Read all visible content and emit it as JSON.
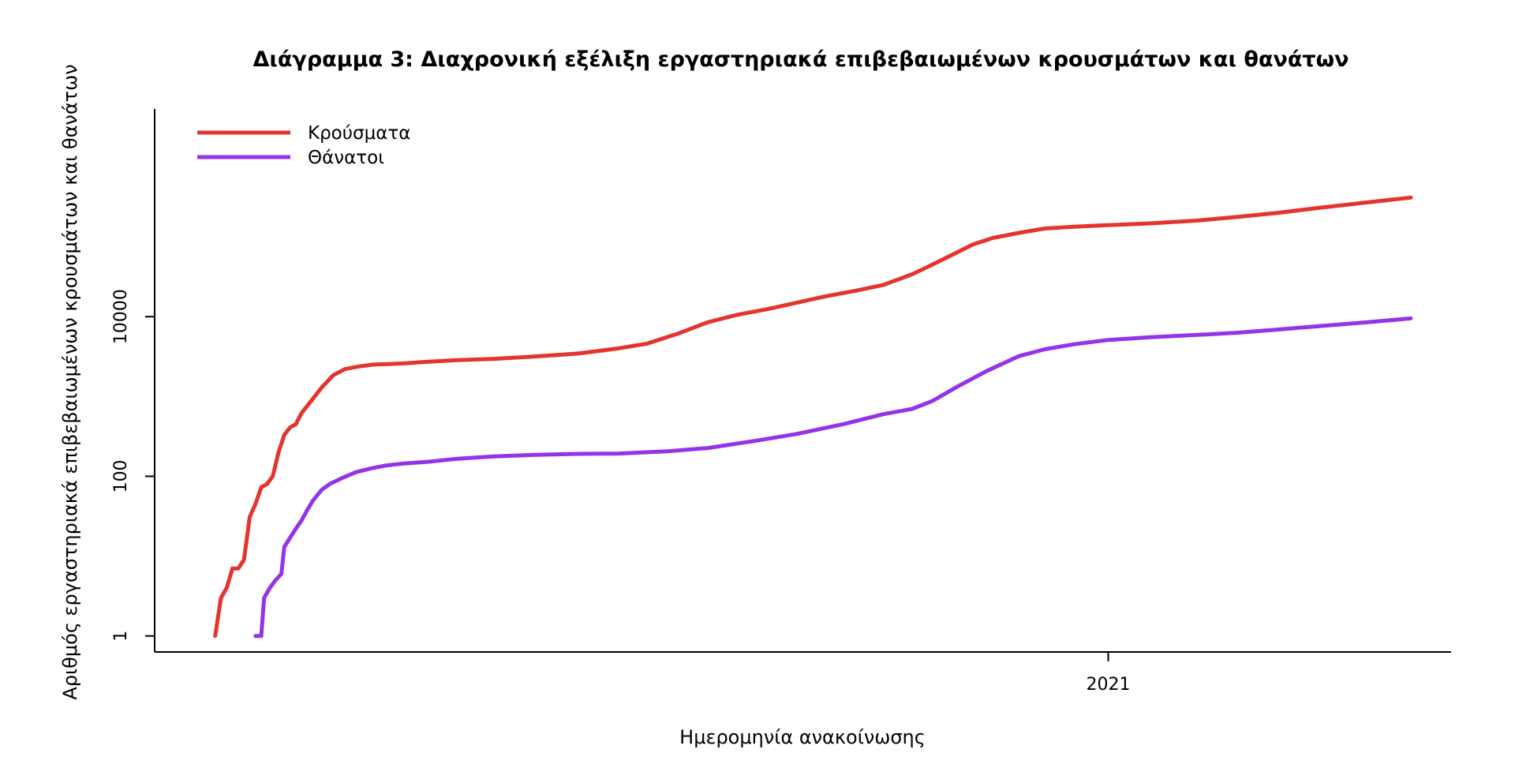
{
  "chart_data": {
    "type": "line",
    "title": "Διάγραμμα 3: Διαχρονική εξέλιξη εργαστηριακά επιβεβαιωμένων κρουσμάτων και θανάτων",
    "xlabel": "Ημερομηνία ανακοίνωσης",
    "ylabel": "Αριθμός εργαστηριακά επιβεβαιωμένων κρουσμάτων και θανάτων",
    "x_type": "date",
    "xlim": [
      "2020-02-05",
      "2021-04-30"
    ],
    "yscale": "log",
    "ylim": [
      0.63,
      4000000
    ],
    "y_ticks": [
      1,
      100,
      10000
    ],
    "y_tick_labels": [
      "1",
      "100",
      "10000"
    ],
    "x_ticks": [
      "2021-01-01"
    ],
    "x_tick_labels": [
      "2021"
    ],
    "grid": false,
    "legend_position": "top-left",
    "series": [
      {
        "name": "Κρούσματα",
        "color": "#e3342f",
        "points": [
          [
            "2020-02-26",
            1
          ],
          [
            "2020-02-28",
            3
          ],
          [
            "2020-03-01",
            4
          ],
          [
            "2020-03-03",
            7
          ],
          [
            "2020-03-05",
            7
          ],
          [
            "2020-03-07",
            9
          ],
          [
            "2020-03-09",
            31
          ],
          [
            "2020-03-11",
            45
          ],
          [
            "2020-03-13",
            73
          ],
          [
            "2020-03-15",
            80
          ],
          [
            "2020-03-17",
            100
          ],
          [
            "2020-03-19",
            200
          ],
          [
            "2020-03-21",
            330
          ],
          [
            "2020-03-23",
            410
          ],
          [
            "2020-03-25",
            450
          ],
          [
            "2020-03-27",
            620
          ],
          [
            "2020-03-30",
            850
          ],
          [
            "2020-04-03",
            1300
          ],
          [
            "2020-04-07",
            1850
          ],
          [
            "2020-04-11",
            2200
          ],
          [
            "2020-04-16",
            2380
          ],
          [
            "2020-04-21",
            2510
          ],
          [
            "2020-04-26",
            2550
          ],
          [
            "2020-05-01",
            2590
          ],
          [
            "2020-05-10",
            2720
          ],
          [
            "2020-05-20",
            2850
          ],
          [
            "2020-06-01",
            2950
          ],
          [
            "2020-06-15",
            3150
          ],
          [
            "2020-07-01",
            3450
          ],
          [
            "2020-07-15",
            4000
          ],
          [
            "2020-07-25",
            4600
          ],
          [
            "2020-08-05",
            6200
          ],
          [
            "2020-08-15",
            8500
          ],
          [
            "2020-08-25",
            10500
          ],
          [
            "2020-09-05",
            12500
          ],
          [
            "2020-09-15",
            15000
          ],
          [
            "2020-09-25",
            18000
          ],
          [
            "2020-10-05",
            21000
          ],
          [
            "2020-10-15",
            25000
          ],
          [
            "2020-10-25",
            34000
          ],
          [
            "2020-11-01",
            45000
          ],
          [
            "2020-11-08",
            60000
          ],
          [
            "2020-11-15",
            80000
          ],
          [
            "2020-11-22",
            97000
          ],
          [
            "2020-12-01",
            112000
          ],
          [
            "2020-12-10",
            127000
          ],
          [
            "2020-12-20",
            134000
          ],
          [
            "2021-01-01",
            140000
          ],
          [
            "2021-01-15",
            147000
          ],
          [
            "2021-02-01",
            160000
          ],
          [
            "2021-02-15",
            178000
          ],
          [
            "2021-03-01",
            200000
          ],
          [
            "2021-03-15",
            230000
          ],
          [
            "2021-04-01",
            270000
          ],
          [
            "2021-04-16",
            310000
          ]
        ]
      },
      {
        "name": "Θάνατοι",
        "color": "#9333ea",
        "points": [
          [
            "2020-03-11",
            1
          ],
          [
            "2020-03-13",
            1
          ],
          [
            "2020-03-14",
            3
          ],
          [
            "2020-03-16",
            4
          ],
          [
            "2020-03-18",
            5
          ],
          [
            "2020-03-20",
            6
          ],
          [
            "2020-03-21",
            13
          ],
          [
            "2020-03-23",
            17
          ],
          [
            "2020-03-25",
            22
          ],
          [
            "2020-03-27",
            28
          ],
          [
            "2020-03-29",
            38
          ],
          [
            "2020-03-31",
            50
          ],
          [
            "2020-04-03",
            68
          ],
          [
            "2020-04-06",
            81
          ],
          [
            "2020-04-10",
            95
          ],
          [
            "2020-04-15",
            113
          ],
          [
            "2020-04-20",
            125
          ],
          [
            "2020-04-25",
            136
          ],
          [
            "2020-05-01",
            144
          ],
          [
            "2020-05-10",
            152
          ],
          [
            "2020-05-20",
            166
          ],
          [
            "2020-06-01",
            177
          ],
          [
            "2020-06-15",
            185
          ],
          [
            "2020-07-01",
            191
          ],
          [
            "2020-07-15",
            193
          ],
          [
            "2020-08-01",
            206
          ],
          [
            "2020-08-15",
            226
          ],
          [
            "2020-09-01",
            280
          ],
          [
            "2020-09-15",
            340
          ],
          [
            "2020-10-01",
            450
          ],
          [
            "2020-10-15",
            600
          ],
          [
            "2020-10-25",
            700
          ],
          [
            "2020-11-01",
            880
          ],
          [
            "2020-11-10",
            1350
          ],
          [
            "2020-11-20",
            2100
          ],
          [
            "2020-12-01",
            3200
          ],
          [
            "2020-12-10",
            3900
          ],
          [
            "2020-12-20",
            4500
          ],
          [
            "2021-01-01",
            5100
          ],
          [
            "2021-01-15",
            5500
          ],
          [
            "2021-02-01",
            5900
          ],
          [
            "2021-02-15",
            6300
          ],
          [
            "2021-03-01",
            6900
          ],
          [
            "2021-03-15",
            7600
          ],
          [
            "2021-04-01",
            8500
          ],
          [
            "2021-04-16",
            9500
          ]
        ]
      }
    ]
  }
}
